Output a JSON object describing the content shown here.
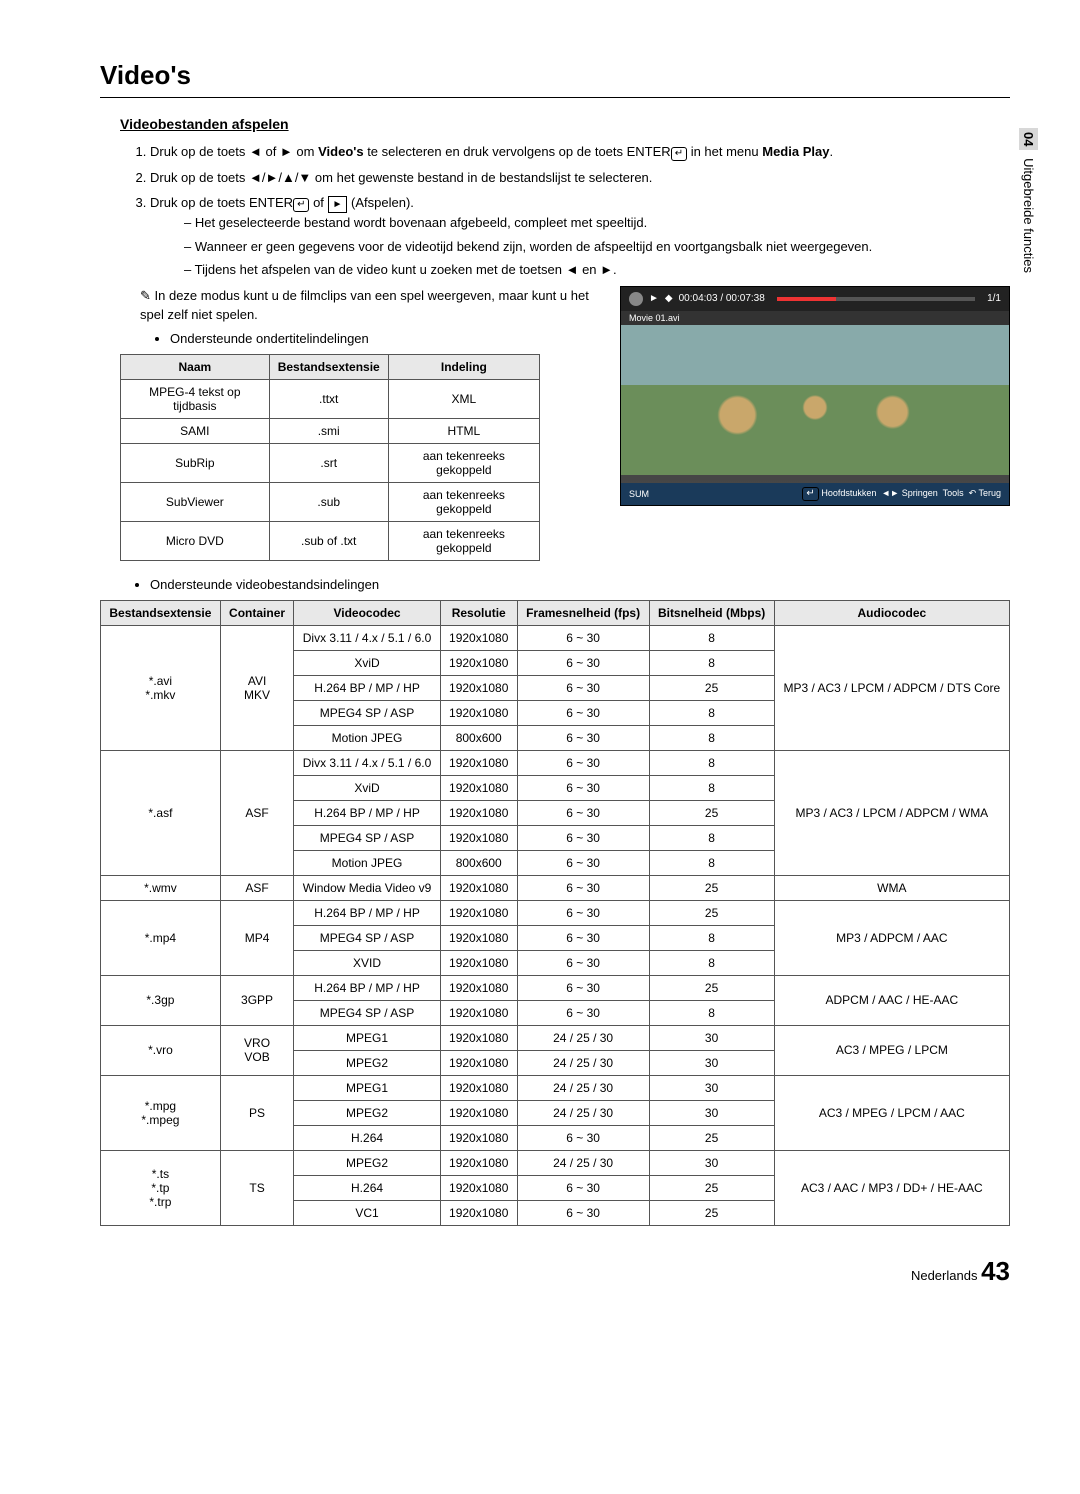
{
  "sidetab": {
    "num": "04",
    "label": "Uitgebreide functies"
  },
  "title": "Video's",
  "section1": "Videobestanden afspelen",
  "steps": [
    {
      "pre": "Druk op de toets ◄ of ► om ",
      "bold1": "Video's",
      "mid": " te selecteren en druk vervolgens op de toets ENTER",
      "post": " in het menu ",
      "bold2": "Media Play",
      "end": "."
    },
    {
      "text": "Druk op de toets ◄/►/▲/▼ om het gewenste bestand in de bestandslijst te selecteren."
    },
    {
      "pre": "Druk op de toets ENTER",
      "mid": " of ",
      "post": " (Afspelen)."
    }
  ],
  "dashes": [
    "Het geselecteerde bestand wordt bovenaan afgebeeld, compleet met speeltijd.",
    "Wanneer er geen gegevens voor de videotijd bekend zijn, worden de afspeeltijd en voortgangsbalk niet weergegeven.",
    "Tijdens het afspelen van de video kunt u zoeken met de toetsen ◄ en ►."
  ],
  "note1": "In deze modus kunt u de filmclips van een spel weergeven, maar kunt u het spel zelf niet spelen.",
  "bullet1": "Ondersteunde ondertitelindelingen",
  "bullet2": "Ondersteunde videobestandsindelingen",
  "screenshot": {
    "time": "00:04:03 / 00:07:38",
    "page": "1/1",
    "filename": "Movie 01.avi",
    "sum": "SUM",
    "b1": "Hoofdstukken",
    "b2": "Springen",
    "b3": "Tools",
    "b4": "Terug"
  },
  "subtitleTable": {
    "headers": [
      "Naam",
      "Bestandsextensie",
      "Indeling"
    ],
    "rows": [
      [
        "MPEG-4 tekst op tijdbasis",
        ".ttxt",
        "XML"
      ],
      [
        "SAMI",
        ".smi",
        "HTML"
      ],
      [
        "SubRip",
        ".srt",
        "aan tekenreeks gekoppeld"
      ],
      [
        "SubViewer",
        ".sub",
        "aan tekenreeks gekoppeld"
      ],
      [
        "Micro DVD",
        ".sub of .txt",
        "aan tekenreeks gekoppeld"
      ]
    ]
  },
  "videoTable": {
    "headers": [
      "Bestandsextensie",
      "Container",
      "Videocodec",
      "Resolutie",
      "Framesnelheid (fps)",
      "Bitsnelheid (Mbps)",
      "Audiocodec"
    ],
    "groups": [
      {
        "ext": "*.avi\n*.mkv",
        "container": "AVI\nMKV",
        "audio": "MP3 / AC3 / LPCM / ADPCM / DTS Core",
        "rows": [
          [
            "Divx 3.11 / 4.x / 5.1 / 6.0",
            "1920x1080",
            "6 ~ 30",
            "8"
          ],
          [
            "XviD",
            "1920x1080",
            "6 ~ 30",
            "8"
          ],
          [
            "H.264 BP / MP / HP",
            "1920x1080",
            "6 ~ 30",
            "25"
          ],
          [
            "MPEG4 SP / ASP",
            "1920x1080",
            "6 ~ 30",
            "8"
          ],
          [
            "Motion JPEG",
            "800x600",
            "6 ~ 30",
            "8"
          ]
        ]
      },
      {
        "ext": "*.asf",
        "container": "ASF",
        "audio": "MP3 / AC3 / LPCM / ADPCM / WMA",
        "rows": [
          [
            "Divx 3.11 / 4.x / 5.1 / 6.0",
            "1920x1080",
            "6 ~ 30",
            "8"
          ],
          [
            "XviD",
            "1920x1080",
            "6 ~ 30",
            "8"
          ],
          [
            "H.264 BP / MP / HP",
            "1920x1080",
            "6 ~ 30",
            "25"
          ],
          [
            "MPEG4 SP / ASP",
            "1920x1080",
            "6 ~ 30",
            "8"
          ],
          [
            "Motion JPEG",
            "800x600",
            "6 ~ 30",
            "8"
          ]
        ]
      },
      {
        "ext": "*.wmv",
        "container": "ASF",
        "audio": "WMA",
        "rows": [
          [
            "Window Media Video v9",
            "1920x1080",
            "6 ~ 30",
            "25"
          ]
        ]
      },
      {
        "ext": "*.mp4",
        "container": "MP4",
        "audio": "MP3 / ADPCM / AAC",
        "rows": [
          [
            "H.264 BP / MP / HP",
            "1920x1080",
            "6 ~ 30",
            "25"
          ],
          [
            "MPEG4 SP / ASP",
            "1920x1080",
            "6 ~ 30",
            "8"
          ],
          [
            "XVID",
            "1920x1080",
            "6 ~ 30",
            "8"
          ]
        ]
      },
      {
        "ext": "*.3gp",
        "container": "3GPP",
        "audio": "ADPCM / AAC / HE-AAC",
        "rows": [
          [
            "H.264 BP / MP / HP",
            "1920x1080",
            "6 ~ 30",
            "25"
          ],
          [
            "MPEG4 SP / ASP",
            "1920x1080",
            "6 ~ 30",
            "8"
          ]
        ]
      },
      {
        "ext": "*.vro",
        "container": "VRO\nVOB",
        "audio": "AC3 / MPEG / LPCM",
        "rows": [
          [
            "MPEG1",
            "1920x1080",
            "24 / 25 / 30",
            "30"
          ],
          [
            "MPEG2",
            "1920x1080",
            "24 / 25 / 30",
            "30"
          ]
        ]
      },
      {
        "ext": "*.mpg\n*.mpeg",
        "container": "PS",
        "audio": "AC3 / MPEG / LPCM / AAC",
        "rows": [
          [
            "MPEG1",
            "1920x1080",
            "24 / 25 / 30",
            "30"
          ],
          [
            "MPEG2",
            "1920x1080",
            "24 / 25 / 30",
            "30"
          ],
          [
            "H.264",
            "1920x1080",
            "6 ~ 30",
            "25"
          ]
        ]
      },
      {
        "ext": "*.ts\n*.tp\n*.trp",
        "container": "TS",
        "audio": "AC3 / AAC / MP3 / DD+ / HE-AAC",
        "rows": [
          [
            "MPEG2",
            "1920x1080",
            "24 / 25 / 30",
            "30"
          ],
          [
            "H.264",
            "1920x1080",
            "6 ~ 30",
            "25"
          ],
          [
            "VC1",
            "1920x1080",
            "6 ~ 30",
            "25"
          ]
        ]
      }
    ]
  },
  "footer": {
    "lang": "Nederlands",
    "page": "43"
  }
}
